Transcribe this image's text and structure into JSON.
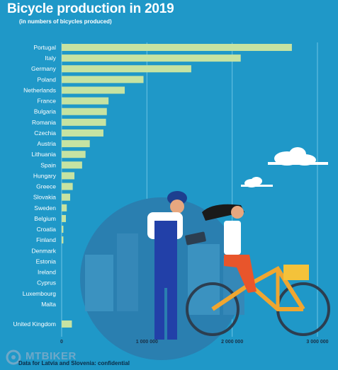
{
  "title": "Bicycle production in 2019",
  "subtitle": "(in numbers of bicycles produced)",
  "footnote": "Data for Latvia and Slovenia: confidential",
  "logo_text": "MTBIKER",
  "colors": {
    "background": "#1f98c8",
    "bar": "#c6e3a2",
    "grid": "#6cc3e4"
  },
  "chart_data": {
    "type": "bar",
    "orientation": "horizontal",
    "categories": [
      "Portugal",
      "Italy",
      "Germany",
      "Poland",
      "Netherlands",
      "France",
      "Bulgaria",
      "Romania",
      "Czechia",
      "Austria",
      "Lithuania",
      "Spain",
      "Hungary",
      "Greece",
      "Slovakia",
      "Sweden",
      "Belgium",
      "Croatia",
      "Finland",
      "Denmark",
      "Estonia",
      "Ireland",
      "Cyprus",
      "Luxembourg",
      "Malta",
      "United Kingdom"
    ],
    "values": [
      2700000,
      2100000,
      1520000,
      960000,
      740000,
      550000,
      530000,
      520000,
      490000,
      330000,
      280000,
      240000,
      150000,
      130000,
      100000,
      60000,
      50000,
      20000,
      20000,
      0,
      0,
      0,
      0,
      0,
      0,
      120000
    ],
    "xlim": [
      0,
      3000000
    ],
    "xticks": [
      "0",
      "1 000 000",
      "2 000 000",
      "3 000 000"
    ],
    "grid": true
  }
}
